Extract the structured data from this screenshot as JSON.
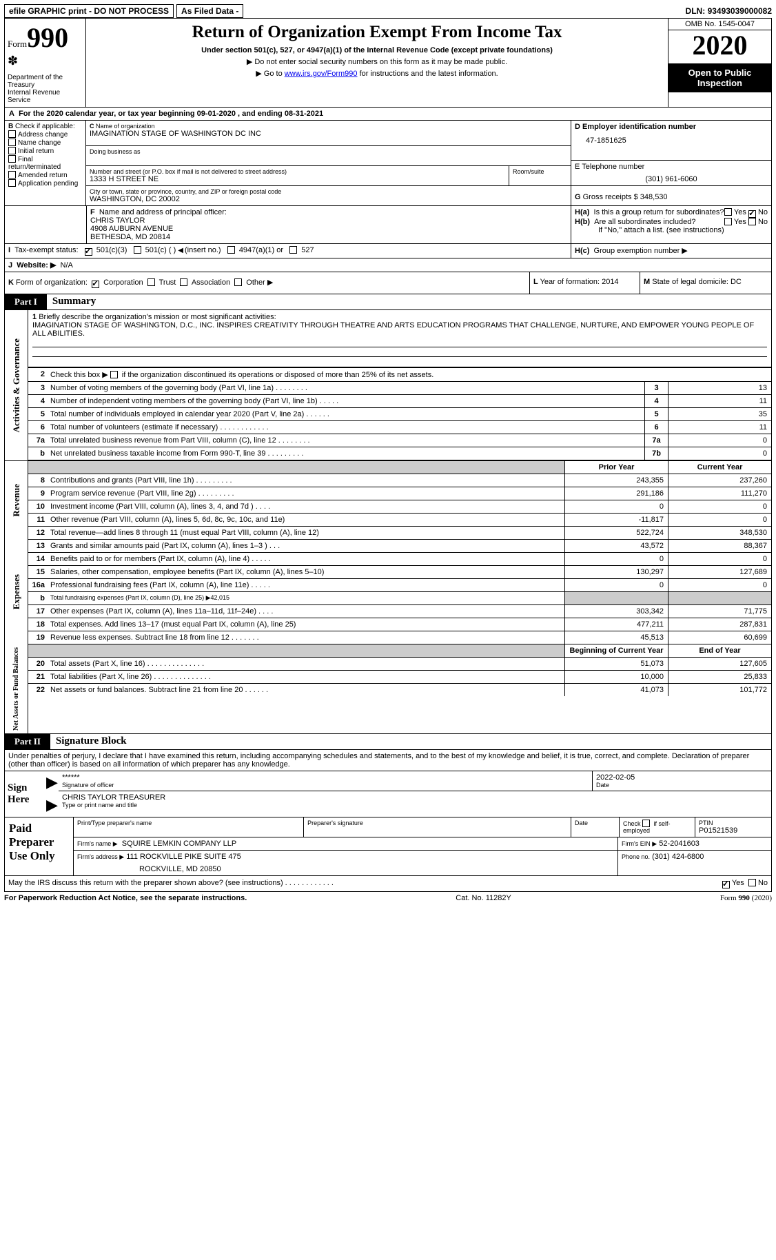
{
  "topbar": {
    "efile": "efile GRAPHIC print - DO NOT PROCESS",
    "asfiled": "As Filed Data -",
    "dln_label": "DLN:",
    "dln": "93493039000082"
  },
  "header": {
    "form_word": "Form",
    "form_num": "990",
    "dept": "Department of the Treasury",
    "irs": "Internal Revenue Service",
    "title": "Return of Organization Exempt From Income Tax",
    "subtitle": "Under section 501(c), 527, or 4947(a)(1) of the Internal Revenue Code (except private foundations)",
    "note1": "▶ Do not enter social security numbers on this form as it may be made public.",
    "note2_pre": "▶ Go to ",
    "note2_link": "www.irs.gov/Form990",
    "note2_post": " for instructions and the latest information.",
    "omb": "OMB No. 1545-0047",
    "year": "2020",
    "otp": "Open to Public Inspection"
  },
  "lineA": {
    "prefix": "A",
    "text": "For the 2020 calendar year, or tax year beginning 09-01-2020   , and ending 08-31-2021"
  },
  "boxB": {
    "label": "B",
    "intro": "Check if applicable:",
    "items": [
      "Address change",
      "Name change",
      "Initial return",
      "Final return/terminated",
      "Amended return",
      "Application pending"
    ]
  },
  "boxC": {
    "label": "C",
    "name_lbl": "Name of organization",
    "name": "IMAGINATION STAGE OF WASHINGTON DC INC",
    "dba_lbl": "Doing business as",
    "dba": "",
    "addr_lbl": "Number and street (or P.O. box if mail is not delivered to street address)",
    "room_lbl": "Room/suite",
    "addr": "1333 H STREET NE",
    "city_lbl": "City or town, state or province, country, and ZIP or foreign postal code",
    "city": "WASHINGTON, DC  20002"
  },
  "boxD": {
    "label": "D",
    "lbl": "Employer identification number",
    "val": "47-1851625"
  },
  "boxE": {
    "label": "E",
    "lbl": "Telephone number",
    "val": "(301) 961-6060"
  },
  "boxG": {
    "label": "G",
    "lbl": "Gross receipts $",
    "val": "348,530"
  },
  "boxF": {
    "label": "F",
    "lbl": "Name and address of principal officer:",
    "l1": "CHRIS TAYLOR",
    "l2": "4908 AUBURN AVENUE",
    "l3": "BETHESDA, MD  20814"
  },
  "boxH": {
    "a_lbl": "H(a)",
    "a_txt": "Is this a group return for subordinates?",
    "b_lbl": "H(b)",
    "b_txt": "Are all subordinates included?",
    "ifno": "If \"No,\" attach a list. (see instructions)",
    "c_lbl": "H(c)",
    "c_txt": "Group exemption number ▶",
    "yes": "Yes",
    "no": "No"
  },
  "boxI": {
    "label": "I",
    "lbl": "Tax-exempt status:",
    "o1": "501(c)(3)",
    "o2": "501(c) (   )",
    "o2b": "(insert no.)",
    "o3": "4947(a)(1) or",
    "o4": "527"
  },
  "boxJ": {
    "label": "J",
    "lbl": "Website: ▶",
    "val": "N/A"
  },
  "boxK": {
    "label": "K",
    "lbl": "Form of organization:",
    "o1": "Corporation",
    "o2": "Trust",
    "o3": "Association",
    "o4": "Other ▶"
  },
  "boxL": {
    "label": "L",
    "lbl": "Year of formation:",
    "val": "2014"
  },
  "boxM": {
    "label": "M",
    "lbl": "State of legal domicile:",
    "val": "DC"
  },
  "part1": {
    "tab": "Part I",
    "title": "Summary",
    "l1_lbl": "1",
    "l1_txt": "Briefly describe the organization's mission or most significant activities:",
    "l1_val": "IMAGINATION STAGE OF WASHINGTON, D.C., INC. INSPIRES CREATIVITY THROUGH THEATRE AND ARTS EDUCATION PROGRAMS THAT CHALLENGE, NURTURE, AND EMPOWER YOUNG PEOPLE OF ALL ABILITIES.",
    "l2_lbl": "2",
    "l2_txt": "Check this box ▶       if the organization discontinued its operations or disposed of more than 25% of its net assets.",
    "vlabels": {
      "gov": "Activities & Governance",
      "rev": "Revenue",
      "exp": "Expenses",
      "net": "Net Assets or Fund Balances"
    },
    "rows_gov": [
      {
        "n": "3",
        "d": "Number of voting members of the governing body (Part VI, line 1a)   .    .    .    .    .    .    .    .",
        "b": "3",
        "v": "13"
      },
      {
        "n": "4",
        "d": "Number of independent voting members of the governing body (Part VI, line 1b)   .    .    .    .    .",
        "b": "4",
        "v": "11"
      },
      {
        "n": "5",
        "d": "Total number of individuals employed in calendar year 2020 (Part V, line 2a)   .    .    .    .    .    .",
        "b": "5",
        "v": "35"
      },
      {
        "n": "6",
        "d": "Total number of volunteers (estimate if necessary)   .    .    .    .    .    .    .    .    .    .    .    .",
        "b": "6",
        "v": "11"
      },
      {
        "n": "7a",
        "d": "Total unrelated business revenue from Part VIII, column (C), line 12   .    .    .    .    .    .    .    .",
        "b": "7a",
        "v": "0"
      },
      {
        "n": "b",
        "d": "Net unrelated business taxable income from Form 990-T, line 39   .    .    .    .    .    .    .    .    .",
        "b": "7b",
        "v": "0"
      }
    ],
    "col_prior": "Prior Year",
    "col_curr": "Current Year",
    "rows_rev": [
      {
        "n": "8",
        "d": "Contributions and grants (Part VIII, line 1h)   .    .    .    .    .    .    .    .    .",
        "p": "243,355",
        "c": "237,260"
      },
      {
        "n": "9",
        "d": "Program service revenue (Part VIII, line 2g)   .    .    .    .    .    .    .    .    .",
        "p": "291,186",
        "c": "111,270"
      },
      {
        "n": "10",
        "d": "Investment income (Part VIII, column (A), lines 3, 4, and 7d )   .    .    .    .",
        "p": "0",
        "c": "0"
      },
      {
        "n": "11",
        "d": "Other revenue (Part VIII, column (A), lines 5, 6d, 8c, 9c, 10c, and 11e)",
        "p": "-11,817",
        "c": "0"
      },
      {
        "n": "12",
        "d": "Total revenue—add lines 8 through 11 (must equal Part VIII, column (A), line 12)",
        "p": "522,724",
        "c": "348,530"
      }
    ],
    "rows_exp": [
      {
        "n": "13",
        "d": "Grants and similar amounts paid (Part IX, column (A), lines 1–3 )   .    .    .",
        "p": "43,572",
        "c": "88,367"
      },
      {
        "n": "14",
        "d": "Benefits paid to or for members (Part IX, column (A), line 4)   .    .    .    .    .",
        "p": "0",
        "c": "0"
      },
      {
        "n": "15",
        "d": "Salaries, other compensation, employee benefits (Part IX, column (A), lines 5–10)",
        "p": "130,297",
        "c": "127,689"
      },
      {
        "n": "16a",
        "d": "Professional fundraising fees (Part IX, column (A), line 11e)   .    .    .    .    .",
        "p": "0",
        "c": "0"
      },
      {
        "n": "b",
        "d": "Total fundraising expenses (Part IX, column (D), line 25) ▶42,015",
        "p": "",
        "c": "",
        "shade": true,
        "small": true
      },
      {
        "n": "17",
        "d": "Other expenses (Part IX, column (A), lines 11a–11d, 11f–24e)   .    .    .    .",
        "p": "303,342",
        "c": "71,775"
      },
      {
        "n": "18",
        "d": "Total expenses. Add lines 13–17 (must equal Part IX, column (A), line 25)",
        "p": "477,211",
        "c": "287,831"
      },
      {
        "n": "19",
        "d": "Revenue less expenses. Subtract line 18 from line 12   .    .    .    .    .    .    .",
        "p": "45,513",
        "c": "60,699"
      }
    ],
    "col_beg": "Beginning of Current Year",
    "col_end": "End of Year",
    "rows_net": [
      {
        "n": "20",
        "d": "Total assets (Part X, line 16)   .    .    .    .    .    .    .    .    .    .    .    .    .    .",
        "p": "51,073",
        "c": "127,605"
      },
      {
        "n": "21",
        "d": "Total liabilities (Part X, line 26)   .    .    .    .    .    .    .    .    .    .    .    .    .    .",
        "p": "10,000",
        "c": "25,833"
      },
      {
        "n": "22",
        "d": "Net assets or fund balances. Subtract line 21 from line 20   .    .    .    .    .    .",
        "p": "41,073",
        "c": "101,772"
      }
    ]
  },
  "part2": {
    "tab": "Part II",
    "title": "Signature Block",
    "decl": "Under penalties of perjury, I declare that I have examined this return, including accompanying schedules and statements, and to the best of my knowledge and belief, it is true, correct, and complete. Declaration of preparer (other than officer) is based on all information of which preparer has any knowledge.",
    "sign_here": "Sign Here",
    "stars": "******",
    "sig_lbl": "Signature of officer",
    "date_lbl": "Date",
    "date_val": "2022-02-05",
    "name_title": "CHRIS TAYLOR  TREASURER",
    "name_lbl": "Type or print name and title",
    "paid": "Paid Preparer Use Only",
    "pp_name_lbl": "Print/Type preparer's name",
    "pp_sig_lbl": "Preparer's signature",
    "pp_date_lbl": "Date",
    "pp_chk_lbl": "Check        if self-employed",
    "ptin_lbl": "PTIN",
    "ptin": "P01521539",
    "firm_name_lbl": "Firm's name    ▶",
    "firm_name": "SQUIRE LEMKIN COMPANY LLP",
    "firm_ein_lbl": "Firm's EIN ▶",
    "firm_ein": "52-2041603",
    "firm_addr_lbl": "Firm's address ▶",
    "firm_addr1": "111 ROCKVILLE PIKE SUITE 475",
    "firm_addr2": "ROCKVILLE, MD  20850",
    "phone_lbl": "Phone no.",
    "phone": "(301) 424-6800",
    "discuss": "May the IRS discuss this return with the preparer shown above? (see instructions)   .    .    .    .    .    .    .    .    .    .    .    .",
    "yes": "Yes",
    "no": "No"
  },
  "footer": {
    "l": "For Paperwork Reduction Act Notice, see the separate instructions.",
    "c": "Cat. No. 11282Y",
    "r_pre": "Form ",
    "r_b": "990",
    "r_post": " (2020)"
  }
}
